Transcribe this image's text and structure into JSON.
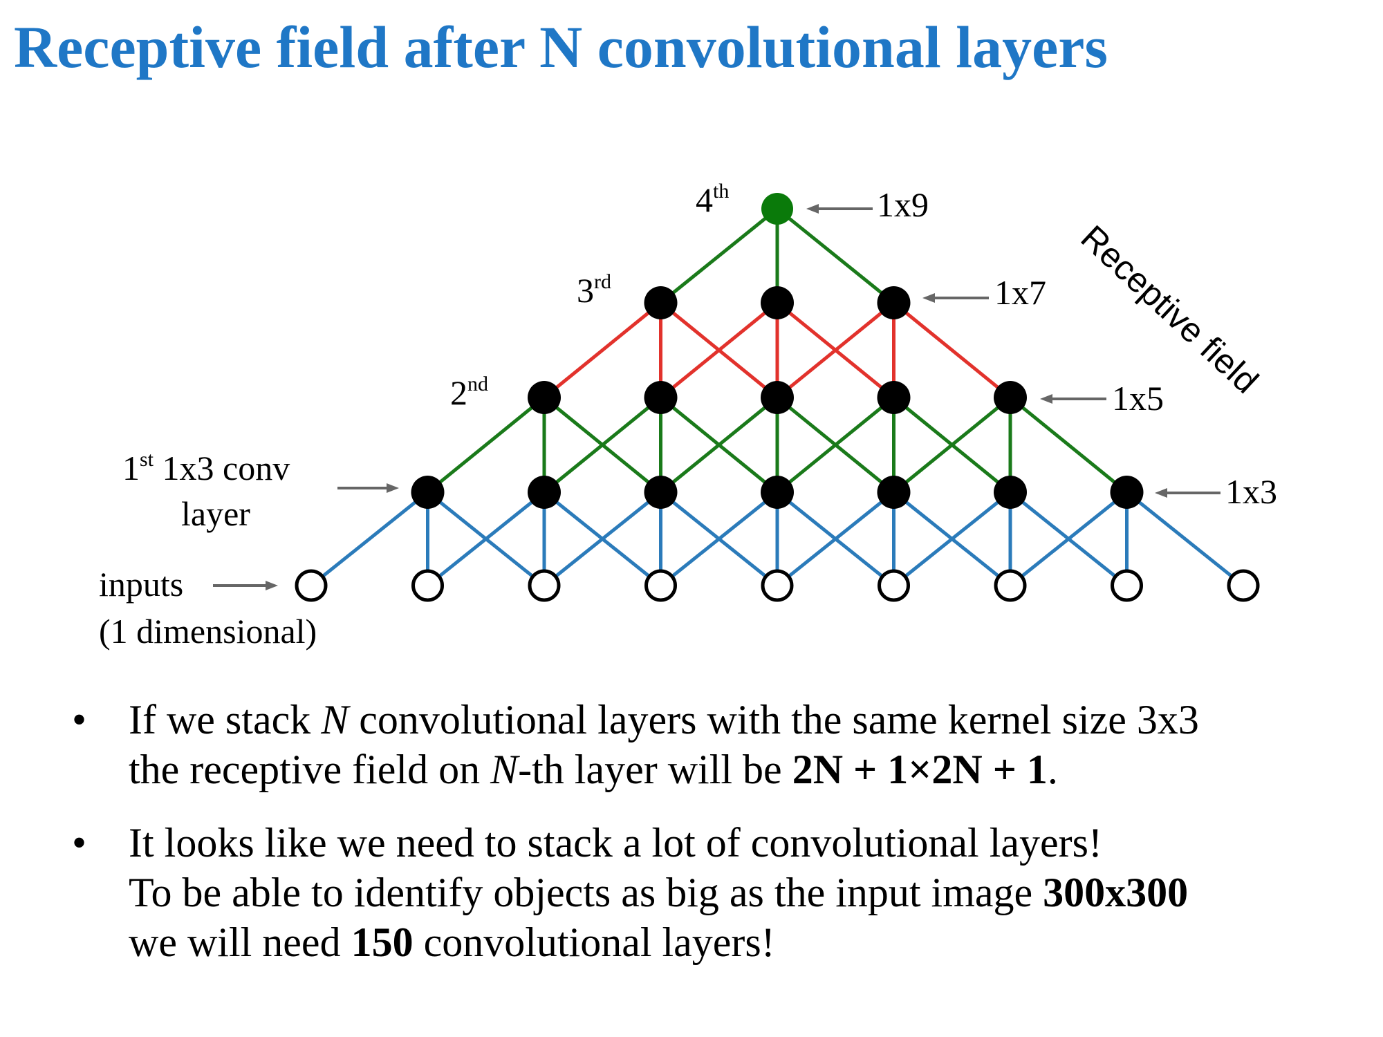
{
  "title": "Receptive field after N convolutional layers",
  "diagram": {
    "colors": {
      "layer1_edges": "#2b7bba",
      "layer2_edges": "#1a7a1a",
      "layer3_edges": "#e2322c",
      "layer4_edges": "#1a7a1a",
      "top_node": "#0a7a0a",
      "node": "#000000",
      "arrow": "#666666"
    },
    "input_label_line1": "inputs",
    "input_label_line2": "(1 dimensional)",
    "layer1_label_num": "1",
    "layer1_label_sup": "st",
    "layer1_label_rest": " 1x3 conv",
    "layer1_label_line2": "layer",
    "layer2_label_num": "2",
    "layer2_label_sup": "nd",
    "layer3_label_num": "3",
    "layer3_label_sup": "rd",
    "layer4_label_num": "4",
    "layer4_label_sup": "th",
    "sizes": [
      "1x3",
      "1x5",
      "1x7",
      "1x9"
    ],
    "receptive_field_label": "Receptive field"
  },
  "bullets": {
    "b1_l1_a": "If we stack ",
    "b1_l1_n": "N",
    "b1_l1_b": " convolutional layers with the same kernel size 3x3",
    "b1_l2_a": "the receptive field on ",
    "b1_l2_n": "N",
    "b1_l2_b": "-th layer will be ",
    "b1_formula": "2N + 1×2N + 1",
    "b1_end": ".",
    "b2_l1": "It looks like we need to stack a lot of convolutional layers!",
    "b2_l2_a": "To be able to identify objects as big as the input image ",
    "b2_l2_bold": "300x300",
    "b2_l3_a": "we will need ",
    "b2_l3_bold": "150",
    "b2_l3_b": " convolutional layers!"
  }
}
